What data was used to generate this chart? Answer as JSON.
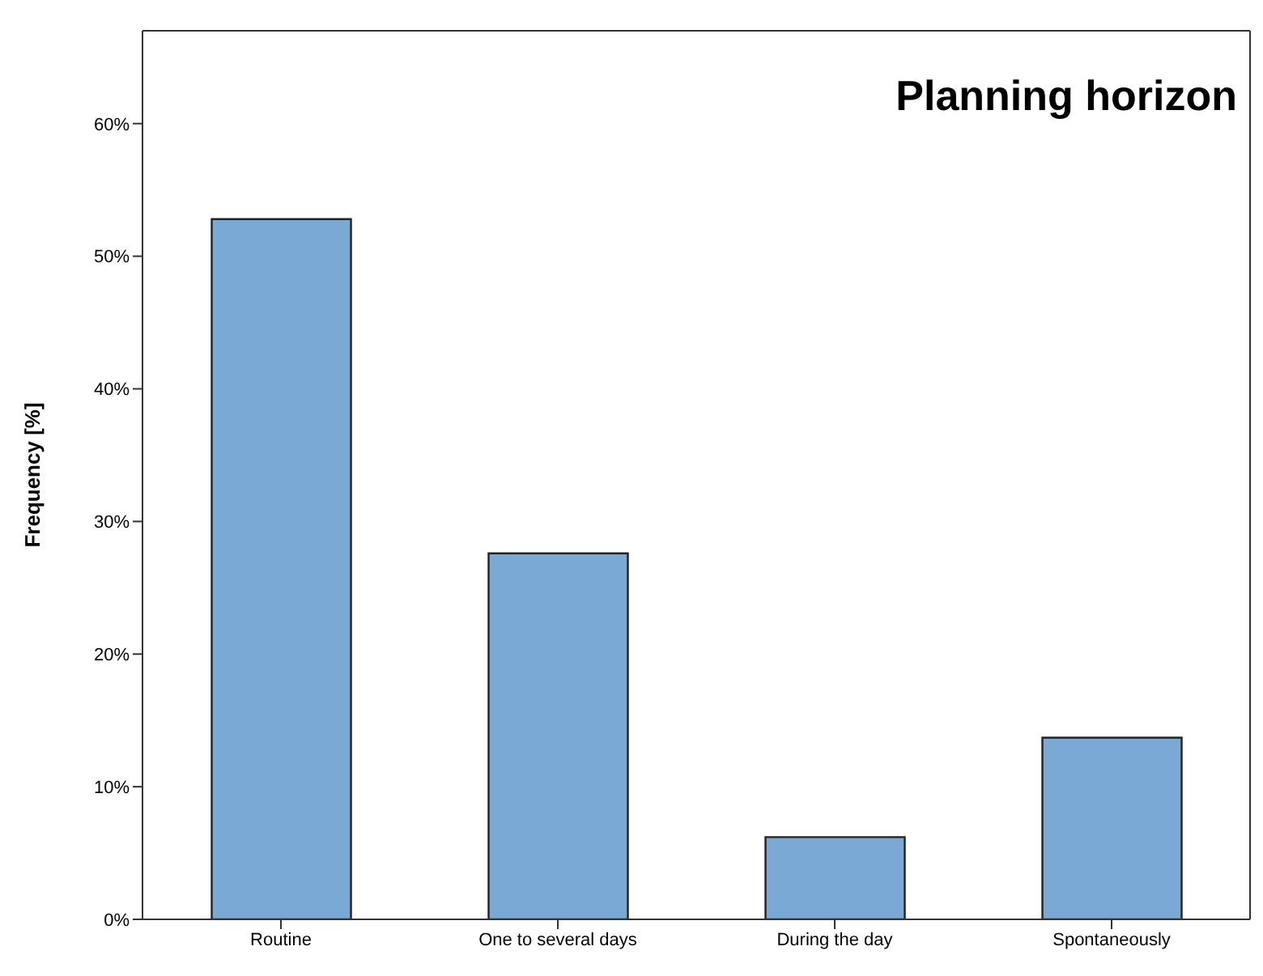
{
  "chart_data": {
    "type": "bar",
    "title": "Planning horizon",
    "ylabel": "Frequency [%]",
    "categories": [
      "Routine",
      "One to several days",
      "During the day",
      "Spontaneously"
    ],
    "values": [
      52.8,
      27.6,
      6.2,
      13.7
    ],
    "color": "#7ba9d6",
    "ylim": [
      0,
      67
    ],
    "yticks": [
      {
        "value": 0,
        "label": "0%"
      },
      {
        "value": 10,
        "label": "10%"
      },
      {
        "value": 20,
        "label": "20%"
      },
      {
        "value": 30,
        "label": "30%"
      },
      {
        "value": 40,
        "label": "40%"
      },
      {
        "value": 50,
        "label": "50%"
      },
      {
        "value": 60,
        "label": "60%"
      }
    ],
    "grid": false,
    "legend": false
  }
}
